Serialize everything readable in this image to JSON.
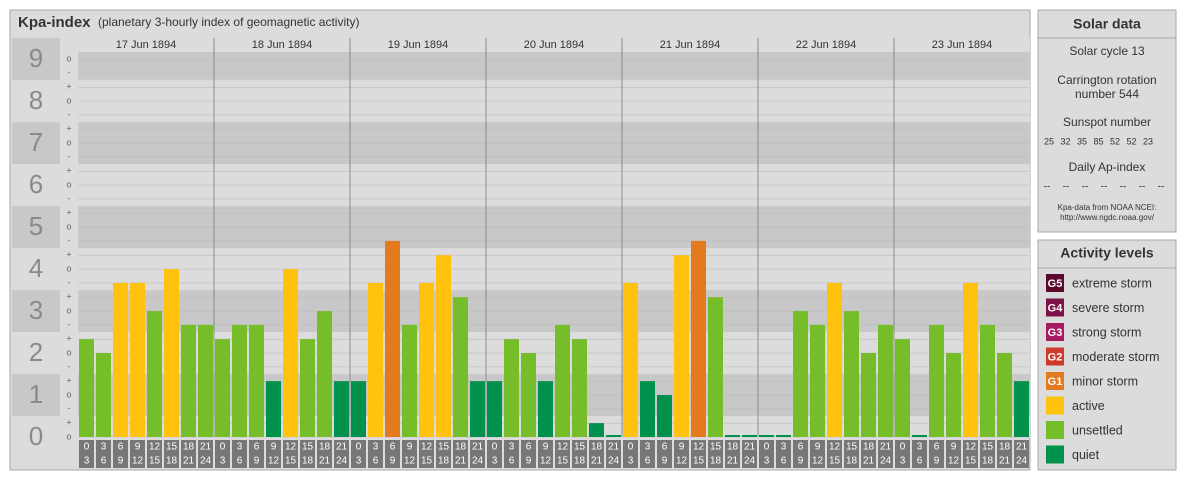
{
  "chart_data": {
    "type": "bar",
    "title": "Kpa-index",
    "subtitle": "(planetary 3-hourly index of geomagnetic activity)",
    "ylim": [
      0,
      9.17
    ],
    "yticks": [
      0,
      1,
      2,
      3,
      4,
      5,
      6,
      7,
      8,
      9
    ],
    "minor_ticks": [
      {
        "value": 9,
        "label": "o"
      },
      {
        "value": 8.67,
        "label": "-"
      },
      {
        "value": 8.33,
        "label": "+"
      },
      {
        "value": 8,
        "label": "o"
      },
      {
        "value": 7.67,
        "label": "-"
      },
      {
        "value": 7.33,
        "label": "+"
      },
      {
        "value": 7,
        "label": "o"
      },
      {
        "value": 6.67,
        "label": "-"
      },
      {
        "value": 6.33,
        "label": "+"
      },
      {
        "value": 6,
        "label": "o"
      },
      {
        "value": 5.67,
        "label": "-"
      },
      {
        "value": 5.33,
        "label": "+"
      },
      {
        "value": 5,
        "label": "o"
      },
      {
        "value": 4.67,
        "label": "-"
      },
      {
        "value": 4.33,
        "label": "+"
      },
      {
        "value": 4,
        "label": "o"
      },
      {
        "value": 3.67,
        "label": "-"
      },
      {
        "value": 3.33,
        "label": "+"
      },
      {
        "value": 3,
        "label": "o"
      },
      {
        "value": 2.67,
        "label": "-"
      },
      {
        "value": 2.33,
        "label": "+"
      },
      {
        "value": 2,
        "label": "o"
      },
      {
        "value": 1.67,
        "label": "-"
      },
      {
        "value": 1.33,
        "label": "+"
      },
      {
        "value": 1,
        "label": "o"
      },
      {
        "value": 0.67,
        "label": "-"
      },
      {
        "value": 0.33,
        "label": "+"
      },
      {
        "value": 0,
        "label": "o"
      }
    ],
    "x_labels": [
      [
        "0",
        "3"
      ],
      [
        "3",
        "6"
      ],
      [
        "6",
        "9"
      ],
      [
        "9",
        "12"
      ],
      [
        "12",
        "15"
      ],
      [
        "15",
        "18"
      ],
      [
        "18",
        "21"
      ],
      [
        "21",
        "24"
      ]
    ],
    "days": [
      {
        "date": "17 Jun 1894",
        "values": [
          2.33,
          2,
          3.67,
          3.67,
          3,
          4,
          2.67,
          2.67
        ],
        "colors": [
          "#76bd2a",
          "#76bd2a",
          "#ffc20e",
          "#ffc20e",
          "#76bd2a",
          "#ffc20e",
          "#76bd2a",
          "#76bd2a"
        ]
      },
      {
        "date": "18 Jun 1894",
        "values": [
          2.33,
          2.67,
          2.67,
          1.33,
          4,
          2.33,
          3,
          1.33
        ],
        "colors": [
          "#76bd2a",
          "#76bd2a",
          "#76bd2a",
          "#00914c",
          "#ffc20e",
          "#76bd2a",
          "#76bd2a",
          "#00914c"
        ]
      },
      {
        "date": "19 Jun 1894",
        "values": [
          1.33,
          3.67,
          4.67,
          2.67,
          3.67,
          4.33,
          3.33,
          1.33
        ],
        "colors": [
          "#00914c",
          "#ffc20e",
          "#e37a1f",
          "#76bd2a",
          "#ffc20e",
          "#ffc20e",
          "#76bd2a",
          "#00914c"
        ]
      },
      {
        "date": "20 Jun 1894",
        "values": [
          1.33,
          2.33,
          2,
          1.33,
          2.67,
          2.33,
          0.33,
          0
        ],
        "colors": [
          "#00914c",
          "#76bd2a",
          "#76bd2a",
          "#00914c",
          "#76bd2a",
          "#76bd2a",
          "#00914c",
          "#00914c"
        ]
      },
      {
        "date": "21 Jun 1894",
        "values": [
          3.67,
          1.33,
          1,
          4.33,
          4.67,
          3.33,
          0,
          0
        ],
        "colors": [
          "#ffc20e",
          "#00914c",
          "#00914c",
          "#ffc20e",
          "#e37a1f",
          "#76bd2a",
          "#00914c",
          "#00914c"
        ]
      },
      {
        "date": "22 Jun 1894",
        "values": [
          0,
          0,
          3,
          2.67,
          3.67,
          3,
          2,
          2.67
        ],
        "colors": [
          "#00914c",
          "#00914c",
          "#76bd2a",
          "#76bd2a",
          "#ffc20e",
          "#76bd2a",
          "#76bd2a",
          "#76bd2a"
        ]
      },
      {
        "date": "23 Jun 1894",
        "values": [
          2.33,
          0,
          2.67,
          2,
          3.67,
          2.67,
          2,
          1.33
        ],
        "colors": [
          "#76bd2a",
          "#00914c",
          "#76bd2a",
          "#76bd2a",
          "#ffc20e",
          "#76bd2a",
          "#76bd2a",
          "#00914c"
        ]
      }
    ]
  },
  "solar_data": {
    "title": "Solar data",
    "cycle": "Solar cycle 13",
    "carrington": [
      "Carrington rotation",
      "number 544"
    ],
    "sunspot_title": "Sunspot number",
    "sunspots": [
      25,
      32,
      35,
      85,
      52,
      52,
      23
    ],
    "ap_title": "Daily Ap-index",
    "ap": [
      "--",
      "--",
      "--",
      "--",
      "--",
      "--",
      "--"
    ],
    "source": [
      "Kpa-data from NOAA NCEI:",
      "http://www.ngdc.noaa.gov/"
    ]
  },
  "activity_levels": {
    "title": "Activity levels",
    "items": [
      {
        "code": "G5",
        "label": "extreme storm",
        "color": "#5b0a2e"
      },
      {
        "code": "G4",
        "label": "severe storm",
        "color": "#7d1247"
      },
      {
        "code": "G3",
        "label": "strong storm",
        "color": "#a8185f"
      },
      {
        "code": "G2",
        "label": "moderate storm",
        "color": "#cc3a2b"
      },
      {
        "code": "G1",
        "label": "minor storm",
        "color": "#e37a1f"
      },
      {
        "label": "active",
        "color": "#ffc20e"
      },
      {
        "label": "unsettled",
        "color": "#76bd2a"
      },
      {
        "label": "quiet",
        "color": "#00914c"
      }
    ]
  }
}
